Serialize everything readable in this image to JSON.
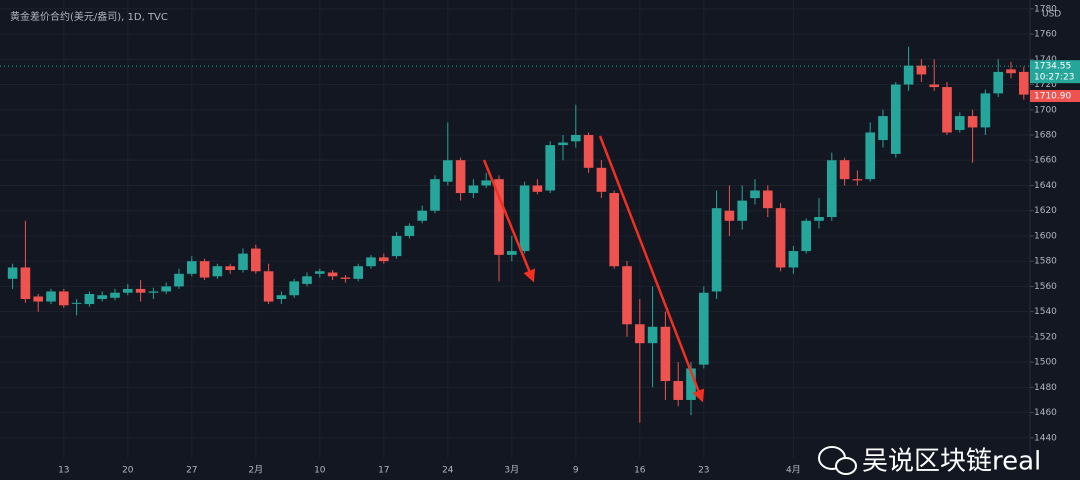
{
  "chart_data": {
    "type": "candlestick",
    "title": "黄金差价合约(美元/盎司), 1D, TVC",
    "currency": "USD",
    "watermark": "吴说区块链real",
    "up_color": "#26a69a",
    "down_color": "#ef5350",
    "categories": [
      null,
      null,
      null,
      null,
      "13",
      null,
      null,
      null,
      null,
      "20",
      null,
      null,
      null,
      null,
      "27",
      null,
      null,
      null,
      null,
      "2月",
      null,
      null,
      null,
      null,
      "10",
      null,
      null,
      null,
      null,
      "17",
      null,
      null,
      null,
      null,
      "24",
      null,
      null,
      null,
      null,
      "3月",
      null,
      null,
      null,
      null,
      "9",
      null,
      null,
      null,
      null,
      "16",
      null,
      null,
      null,
      null,
      "23",
      null,
      null,
      null,
      null,
      null,
      null,
      "4月",
      null,
      null,
      null,
      null,
      null,
      null,
      null,
      null,
      null,
      null,
      null,
      null,
      null,
      null,
      null,
      null,
      null,
      null
    ],
    "open": [
      1566,
      1575,
      1552,
      1548,
      1556,
      1547,
      1546,
      1550,
      1551,
      1555,
      1558,
      1555,
      1556,
      1560,
      1570,
      1580,
      1568,
      1576,
      1573,
      1590,
      1572,
      1550,
      1553,
      1562,
      1570,
      1571,
      1567,
      1566,
      1576,
      1583,
      1584,
      1600,
      1612,
      1620,
      1643,
      1660,
      1634,
      1640,
      1645,
      1585,
      1588,
      1640,
      1636,
      1672,
      1675,
      1680,
      1654,
      1634,
      1576,
      1530,
      1515,
      1528,
      1485,
      1470,
      1498,
      1556,
      1620,
      1612,
      1630,
      1636,
      1622,
      1575,
      1588,
      1612,
      1615,
      1660,
      1645,
      1645,
      1676,
      1665,
      1720,
      1735,
      1720,
      1718,
      1684,
      1695,
      1686,
      1713,
      1732,
      1730
    ],
    "high": [
      1578,
      1612,
      1554,
      1558,
      1558,
      1550,
      1556,
      1556,
      1558,
      1562,
      1565,
      1559,
      1563,
      1574,
      1584,
      1582,
      1578,
      1578,
      1590,
      1593,
      1578,
      1556,
      1566,
      1571,
      1574,
      1573,
      1569,
      1578,
      1585,
      1586,
      1603,
      1610,
      1624,
      1648,
      1690,
      1662,
      1645,
      1650,
      1648,
      1600,
      1643,
      1645,
      1675,
      1680,
      1704,
      1682,
      1660,
      1636,
      1580,
      1550,
      1560,
      1540,
      1500,
      1500,
      1560,
      1636,
      1640,
      1640,
      1645,
      1640,
      1626,
      1592,
      1614,
      1630,
      1666,
      1662,
      1652,
      1690,
      1700,
      1722,
      1750,
      1740,
      1740,
      1722,
      1698,
      1700,
      1716,
      1740,
      1738,
      1734
    ],
    "low": [
      1558,
      1547,
      1540,
      1546,
      1543,
      1537,
      1544,
      1548,
      1549,
      1553,
      1548,
      1550,
      1554,
      1558,
      1568,
      1565,
      1566,
      1570,
      1571,
      1570,
      1546,
      1546,
      1551,
      1560,
      1567,
      1565,
      1563,
      1564,
      1574,
      1578,
      1582,
      1598,
      1610,
      1618,
      1640,
      1628,
      1630,
      1638,
      1564,
      1580,
      1586,
      1633,
      1634,
      1660,
      1670,
      1650,
      1630,
      1574,
      1520,
      1452,
      1480,
      1470,
      1465,
      1458,
      1495,
      1550,
      1600,
      1605,
      1625,
      1615,
      1572,
      1570,
      1586,
      1606,
      1612,
      1640,
      1640,
      1643,
      1670,
      1662,
      1715,
      1722,
      1715,
      1680,
      1682,
      1658,
      1680,
      1710,
      1725,
      1708
    ],
    "close": [
      1575,
      1550,
      1548,
      1556,
      1545,
      1547,
      1554,
      1553,
      1555,
      1558,
      1555,
      1556,
      1560,
      1570,
      1580,
      1567,
      1576,
      1573,
      1586,
      1572,
      1548,
      1553,
      1564,
      1568,
      1572,
      1568,
      1566,
      1576,
      1583,
      1580,
      1600,
      1608,
      1620,
      1645,
      1660,
      1634,
      1640,
      1644,
      1585,
      1588,
      1640,
      1635,
      1672,
      1674,
      1680,
      1654,
      1635,
      1576,
      1530,
      1515,
      1528,
      1485,
      1470,
      1495,
      1555,
      1622,
      1612,
      1628,
      1636,
      1622,
      1575,
      1588,
      1612,
      1615,
      1660,
      1645,
      1644,
      1682,
      1695,
      1720,
      1735,
      1728,
      1718,
      1682,
      1695,
      1686,
      1713,
      1730,
      1729,
      1712
    ],
    "ylim": [
      1424,
      1787
    ],
    "yticks": [
      1440,
      1460,
      1480,
      1500,
      1520,
      1540,
      1560,
      1580,
      1600,
      1620,
      1640,
      1660,
      1680,
      1700,
      1720,
      1740,
      1760,
      1780
    ],
    "last_price": 1734.55,
    "countdown": "10:27:23",
    "close_price": {
      "value": 1710.9,
      "label": "1710.90"
    }
  }
}
